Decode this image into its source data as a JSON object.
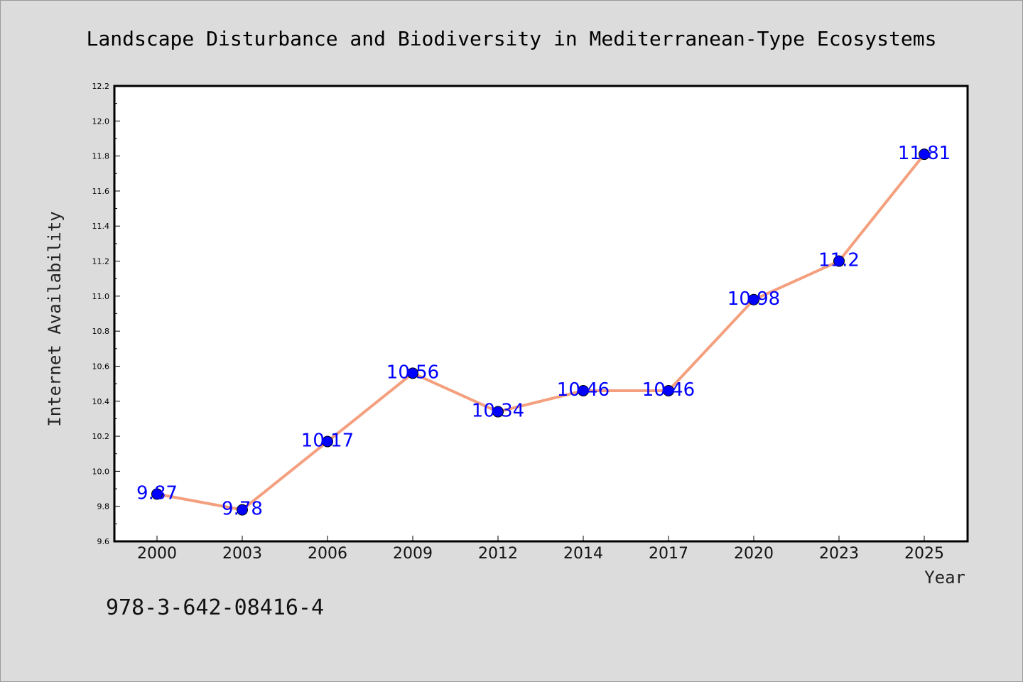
{
  "chart_data": {
    "type": "line",
    "title": "Landscape Disturbance and Biodiversity in Mediterranean-Type Ecosystems",
    "xlabel": "Year",
    "ylabel": "Internet Availability",
    "categories": [
      "2000",
      "2003",
      "2006",
      "2009",
      "2012",
      "2014",
      "2017",
      "2020",
      "2023",
      "2025"
    ],
    "series": [
      {
        "values": [
          9.87,
          9.78,
          10.17,
          10.56,
          10.34,
          10.46,
          10.46,
          10.98,
          11.2,
          11.81
        ],
        "data_labels": [
          "9.87",
          "9.78",
          "10.17",
          "10.56",
          "10.34",
          "10.46",
          "10.46",
          "10.98",
          "11.2",
          "11.81"
        ]
      }
    ],
    "ylim": [
      9.6,
      12.2
    ],
    "yticks": [
      "9.6",
      "9.8",
      "10.0",
      "10.2",
      "10.4",
      "10.6",
      "10.8",
      "11.0",
      "11.2",
      "11.4",
      "11.6",
      "11.8",
      "12.0",
      "12.2"
    ],
    "grid": false,
    "legend": "none",
    "colors": {
      "line": "#f4a07e",
      "marker": "#0000ff",
      "label": "#0000ff",
      "background": "#dcdcdc",
      "plot_bg": "#ffffff"
    }
  },
  "footnote": "978-3-642-08416-4"
}
